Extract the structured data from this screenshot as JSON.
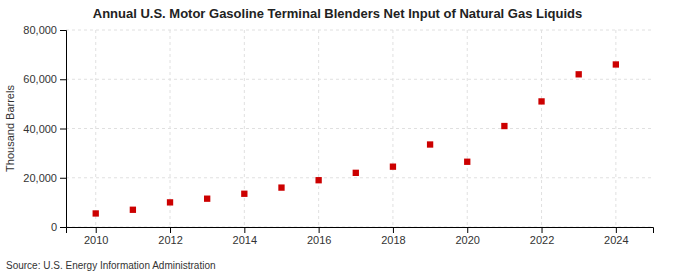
{
  "chart_data": {
    "type": "scatter",
    "title": "Annual U.S. Motor Gasoline Terminal Blenders Net Input of Natural Gas Liquids",
    "y_label": "Thousand Barrels",
    "annotations": [
      "Source: U.S. Energy Information Administration"
    ],
    "x": [
      2010,
      2011,
      2012,
      2013,
      2014,
      2015,
      2016,
      2017,
      2018,
      2019,
      2020,
      2021,
      2022,
      2023,
      2024
    ],
    "values": [
      5500,
      7000,
      10000,
      11500,
      13500,
      16000,
      19000,
      22000,
      24500,
      33500,
      26500,
      41000,
      51000,
      62000,
      66000
    ],
    "color": "#cc0000",
    "marker": "square",
    "xlim": [
      2009.2,
      2025.0
    ],
    "xticks": [
      2010,
      2012,
      2014,
      2016,
      2018,
      2020,
      2022,
      2024
    ],
    "ylim": [
      0,
      80000
    ],
    "yticks": [
      0,
      {
        "value": 20000,
        "label": "20,000"
      },
      {
        "value": 40000,
        "label": "40,000"
      },
      {
        "value": 60000,
        "label": "60,000"
      },
      {
        "value": 80000,
        "label": "80,000"
      }
    ],
    "grid": true
  }
}
